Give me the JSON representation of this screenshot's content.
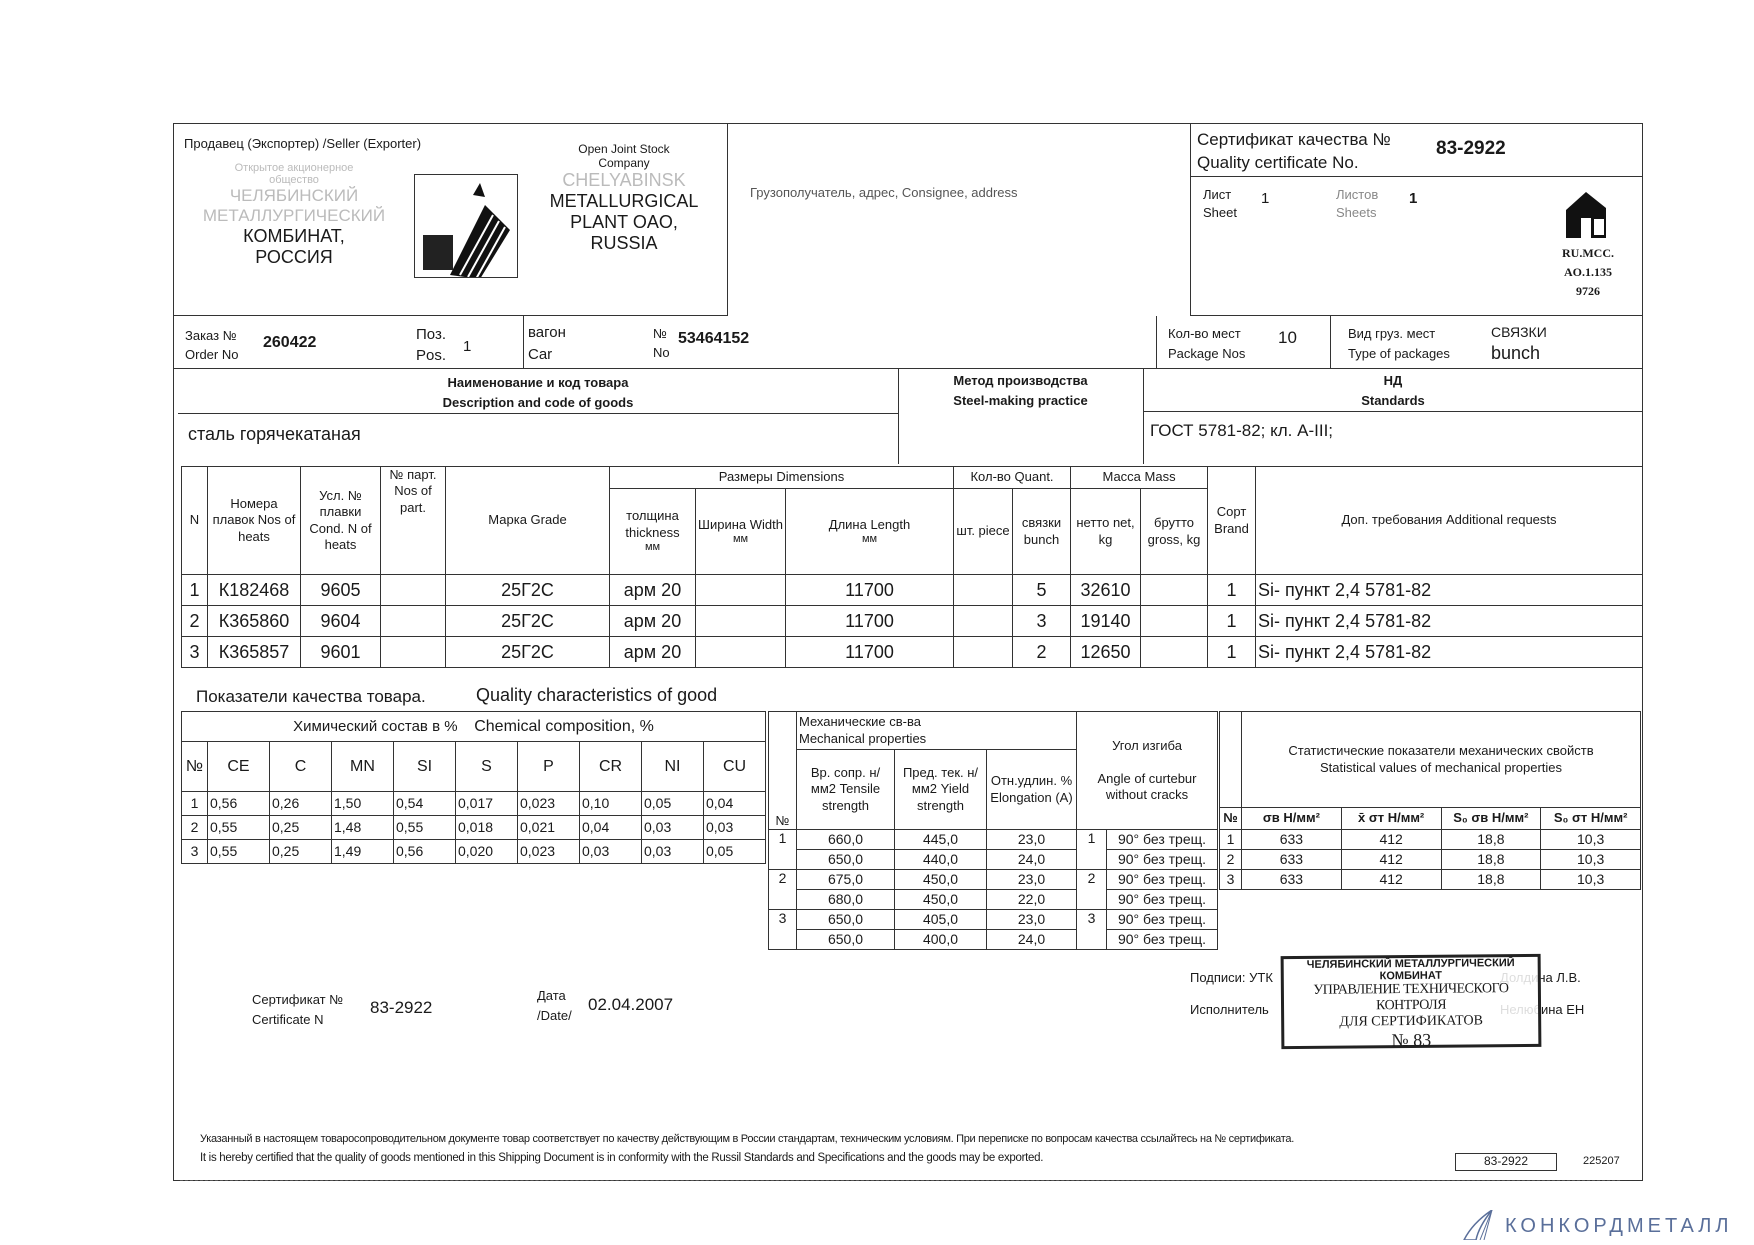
{
  "seller": {
    "label": "Продавец (Экспортер) /Seller (Exporter)",
    "ru_lines": [
      "Открытое акционерное",
      "общество",
      "ЧЕЛЯБИНСКИЙ",
      "МЕТАЛЛУРГИЧЕСКИЙ",
      "КОМБИНАТ,",
      "РОССИЯ"
    ],
    "en_lines": [
      "Open Joint Stock",
      "Company",
      "CHELYABINSK",
      "METALLURGICAL",
      "PLANT OAO,",
      "RUSSIA"
    ],
    "logo_icon": "steel-rods-logo-icon"
  },
  "consignee": {
    "label": "Грузополучатель, адрес, Consignee, address"
  },
  "certificate": {
    "label_ru": "Сертификат качества №",
    "label_en": "Quality certificate No.",
    "number": "83-2922",
    "sheet_ru": "Лист",
    "sheet_en": "Sheet",
    "sheet": "1",
    "sheets_ru": "Листов",
    "sheets_en": "Sheets",
    "sheets": "1",
    "mark_lines": [
      "RU.MCC.",
      "AO.1.135",
      "9726"
    ],
    "mark_icon": "mc-certification-mark-icon"
  },
  "order": {
    "order_ru": "Заказ №",
    "order_en": "Order No",
    "order_no": "260422",
    "pos_ru": "Поз.",
    "pos_en": "Pos.",
    "pos": "1",
    "car_ru": "вагон",
    "car_en": "Car",
    "car_no_ru": "№",
    "car_no_en": "No",
    "car_no": "53464152",
    "packages_ru": "Кол-во мест",
    "packages_en": "Package Nos",
    "packages": "10",
    "type_ru": "Вид груз. мест",
    "type_en": "Type of packages",
    "type_value_ru": "СВЯЗКИ",
    "type_value_en": "bunch"
  },
  "description": {
    "header_ru": "Наименование и код товара",
    "header_en": "Description and code of goods",
    "value": "сталь горячекатаная",
    "method_ru": "Метод производства",
    "method_en": "Steel-making practice",
    "standards_ru": "НД",
    "standards_en": "Standards",
    "standards_value": "ГОСТ 5781-82;  кл. А-III;"
  },
  "goods_table": {
    "headers": {
      "n": "N",
      "heat": "Номера плавок Nos of heats",
      "cond": "Усл. № плавки Cond. N of heats",
      "part": "№ парт. Nos of part.",
      "grade": "Марка Grade",
      "dimensions": "Размеры Dimensions",
      "thickness": "толщина thickness",
      "width": "Ширина Width",
      "length": "Длина Length",
      "mm": "мм",
      "quant": "Кол-во Quant.",
      "piece": "шт. piece",
      "bunch": "связки bunch",
      "mass": "Масса Mass",
      "net": "нетто net, kg",
      "gross": "брутто gross, kg",
      "brand": "Сорт Brand",
      "additional": "Доп. требования Additional requests"
    },
    "rows": [
      {
        "n": "1",
        "heat": "К182468",
        "cond": "9605",
        "part": "",
        "grade": "25Г2С",
        "thickness": "арм 20",
        "width": "",
        "length": "11700",
        "piece": "",
        "bunch": "5",
        "net": "32610",
        "gross": "",
        "brand": "1",
        "additional": "Si-  пункт 2,4   5781-82"
      },
      {
        "n": "2",
        "heat": "К365860",
        "cond": "9604",
        "part": "",
        "grade": "25Г2С",
        "thickness": "арм 20",
        "width": "",
        "length": "11700",
        "piece": "",
        "bunch": "3",
        "net": "19140",
        "gross": "",
        "brand": "1",
        "additional": "Si-  пункт 2,4   5781-82"
      },
      {
        "n": "3",
        "heat": "К365857",
        "cond": "9601",
        "part": "",
        "grade": "25Г2С",
        "thickness": "арм 20",
        "width": "",
        "length": "11700",
        "piece": "",
        "bunch": "2",
        "net": "12650",
        "gross": "",
        "brand": "1",
        "additional": "Si-  пункт 2,4   5781-82"
      }
    ]
  },
  "quality": {
    "title_ru": "Показатели качества товара.",
    "title_en": "Quality characteristics of good"
  },
  "chemical": {
    "title_ru": "Химический состав в %",
    "title_en": "Chemical  composition, %",
    "columns": [
      "№",
      "CE",
      "C",
      "MN",
      "SI",
      "S",
      "P",
      "CR",
      "NI",
      "CU"
    ],
    "rows": [
      [
        "1",
        "0,56",
        "0,26",
        "1,50",
        "0,54",
        "0,017",
        "0,023",
        "0,10",
        "0,05",
        "0,04"
      ],
      [
        "2",
        "0,55",
        "0,25",
        "1,48",
        "0,55",
        "0,018",
        "0,021",
        "0,04",
        "0,03",
        "0,03"
      ],
      [
        "3",
        "0,55",
        "0,25",
        "1,49",
        "0,56",
        "0,020",
        "0,023",
        "0,03",
        "0,03",
        "0,05"
      ]
    ]
  },
  "mechanical": {
    "title_ru": "Механические св-ва",
    "title_en": "Mechanical properties",
    "no": "№",
    "tensile": "Вр. сопр. н/мм2 Tensile strength",
    "yield": "Пред. тек. н/мм2 Yield strength",
    "elongation": "Отн.удлин. % Elongation (A)",
    "bend_title_ru": "Угол  изгиба",
    "bend_title_en": "Angle of curtebur without cracks",
    "rows": [
      {
        "no": "1",
        "tensile": "660,0",
        "yield": "445,0",
        "elongation": "23,0",
        "bend_no": "1",
        "bend": "90° без трещ."
      },
      {
        "no": "",
        "tensile": "650,0",
        "yield": "440,0",
        "elongation": "24,0",
        "bend_no": "",
        "bend": "90° без трещ."
      },
      {
        "no": "2",
        "tensile": "675,0",
        "yield": "450,0",
        "elongation": "23,0",
        "bend_no": "2",
        "bend": "90° без трещ."
      },
      {
        "no": "",
        "tensile": "680,0",
        "yield": "450,0",
        "elongation": "22,0",
        "bend_no": "",
        "bend": "90° без трещ."
      },
      {
        "no": "3",
        "tensile": "650,0",
        "yield": "405,0",
        "elongation": "23,0",
        "bend_no": "3",
        "bend": "90° без трещ."
      },
      {
        "no": "",
        "tensile": "650,0",
        "yield": "400,0",
        "elongation": "24,0",
        "bend_no": "",
        "bend": "90° без трещ."
      }
    ]
  },
  "statistical": {
    "title_ru": "Статистические показатели механических свойств",
    "title_en": "Statistical values of mechanical properties",
    "columns": [
      "№",
      "σв Н/мм²",
      "x̄ σт Н/мм²",
      "S₀ σв Н/мм²",
      "S₀ σт Н/мм²"
    ],
    "rows": [
      [
        "1",
        "633",
        "412",
        "18,8",
        "10,3"
      ],
      [
        "2",
        "633",
        "412",
        "18,8",
        "10,3"
      ],
      [
        "3",
        "633",
        "412",
        "18,8",
        "10,3"
      ]
    ]
  },
  "cert_footer": {
    "label_ru": "Сертификат №",
    "label_en": "Certificate N",
    "number": "83-2922",
    "date_ru": "Дата",
    "date_en": "/Date/",
    "date": "02.04.2007"
  },
  "signatures": {
    "signed_label": "Подписи: УТК",
    "signed_name": "Долдина Л.В.",
    "executor_label": "Исполнитель",
    "executor_name": "Нелюбина ЕН",
    "stamp_lines": [
      "ЧЕЛЯБИНСКИЙ МЕТАЛЛУРГИЧЕСКИЙ",
      "КОМБИНАТ",
      "УПРАВЛЕНИЕ ТЕХНИЧЕСКОГО КОНТРОЛЯ",
      "ДЛЯ СЕРТИФИКАТОВ",
      "№ 83"
    ]
  },
  "footer": {
    "line_ru": "Указанный в настоящем товаросопроводительном документе товар соответствует по качеству действующим в России стандартам, техническим условиям. При переписке по вопросам качества ссылайтесь на № сертификата.",
    "line_en": "It is hereby certified that the quality of goods mentioned in this Shipping Document is in conformity with the Russil Standards and Specifications and the goods may be exported.",
    "cert_number": "83-2922",
    "code": "225207"
  },
  "watermark": {
    "text": "КОНКОРДМЕТАЛЛ",
    "icon": "sail-logo-icon"
  }
}
